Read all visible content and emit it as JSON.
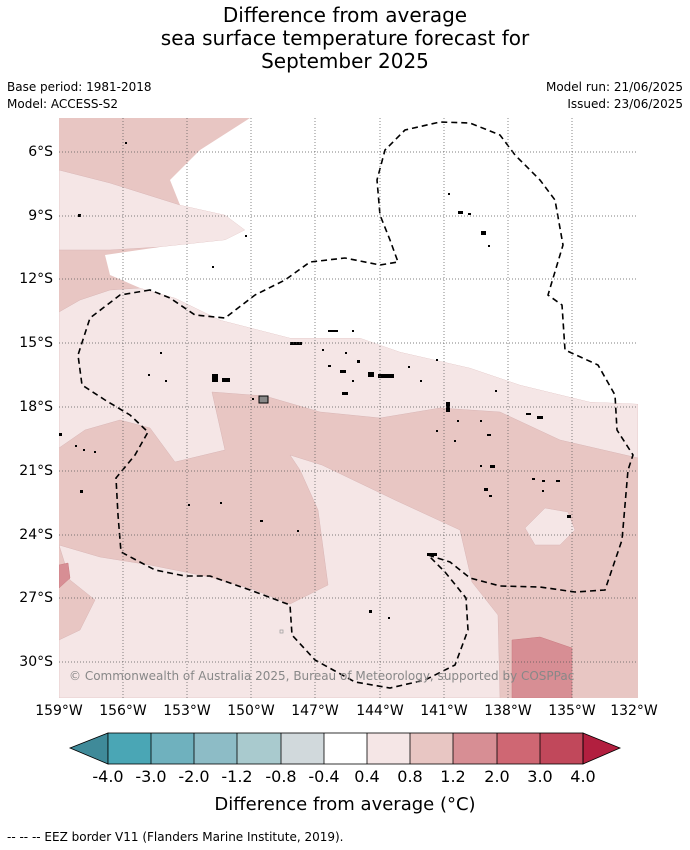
{
  "title": {
    "line1": "Difference from average",
    "line2": "sea surface temperature forecast for",
    "line3": "September 2025"
  },
  "meta": {
    "base_period": "Base period: 1981-2018",
    "model": "Model: ACCESS-S2",
    "model_run": "Model run: 21/06/2025",
    "issued": "Issued: 23/06/2025"
  },
  "map": {
    "lat_labels": [
      "6°S",
      "9°S",
      "12°S",
      "15°S",
      "18°S",
      "21°S",
      "24°S",
      "27°S",
      "30°S"
    ],
    "lon_labels": [
      "159°W",
      "156°W",
      "153°W",
      "150°W",
      "147°W",
      "144°W",
      "141°W",
      "138°W",
      "135°W",
      "132°W"
    ],
    "copyright": "© Commonwealth of Australia 2025, Bureau of Meteorology, supported by COSPPac",
    "grid": true
  },
  "colorbar": {
    "labels": [
      "-4.0",
      "-3.0",
      "-2.0",
      "-1.2",
      "-0.8",
      "-0.4",
      "0.4",
      "0.8",
      "1.2",
      "2.0",
      "3.0",
      "4.0"
    ],
    "colors": [
      "#3f8a99",
      "#4aa6b5",
      "#6fb1be",
      "#8dbcc6",
      "#a9cace",
      "#d1d9dc",
      "#ffffff",
      "#f5e6e6",
      "#e8c6c3",
      "#d78e94",
      "#cf6773",
      "#c1485b",
      "#b21f3f"
    ],
    "title": "Difference from average (°C)"
  },
  "footer": "--  --  -- EEZ border V11 (Flanders Marine Institute, 2019)."
}
